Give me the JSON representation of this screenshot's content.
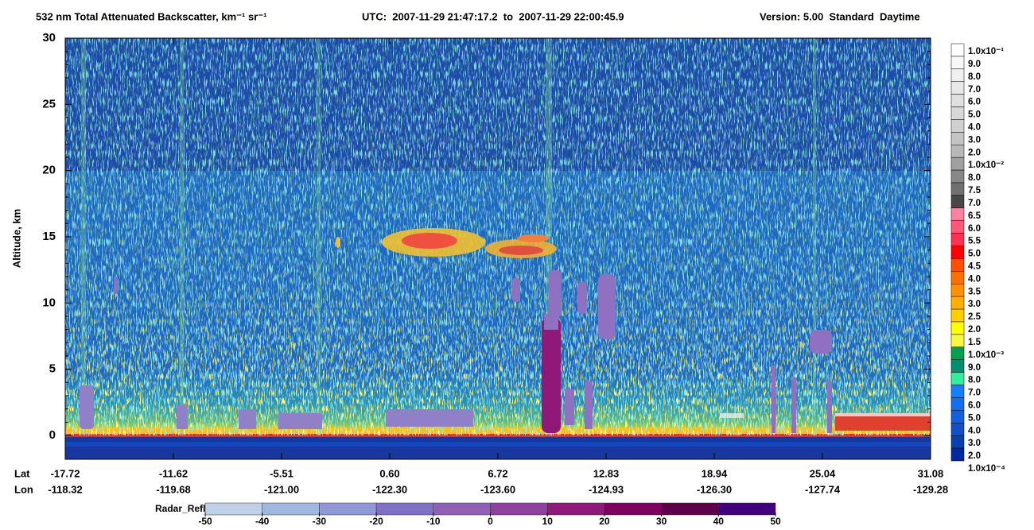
{
  "chart_data": {
    "type": "heatmap",
    "title": "532 nm Total Attenuated Backscatter, km⁻¹ sr⁻¹",
    "time_range": "UTC:  2007-11-29 21:47:17.2  to  2007-11-29 22:00:45.9",
    "version": "Version: 5.00  Standard  Daytime",
    "y_label": "Altitude, km",
    "ylim": [
      -1.8,
      30
    ],
    "yticks": [
      0,
      5,
      10,
      15,
      20,
      25,
      30
    ],
    "x_row_labels": [
      "Lat",
      "Lon"
    ],
    "lat_ticks": [
      "-17.72",
      "-11.62",
      "-5.51",
      "0.60",
      "6.72",
      "12.83",
      "18.94",
      "25.04",
      "31.08"
    ],
    "lon_ticks": [
      "-118.32",
      "-119.68",
      "-121.00",
      "-122.30",
      "-123.60",
      "-124.93",
      "-126.30",
      "-127.74",
      "-129.28"
    ],
    "colorbar": {
      "labels": [
        "1.0x10⁻¹",
        "9.0",
        "8.0",
        "7.0",
        "6.0",
        "5.0",
        "4.0",
        "3.0",
        "2.0",
        "1.0x10⁻²",
        "8.0",
        "7.5",
        "7.0",
        "6.5",
        "6.0",
        "5.5",
        "5.0",
        "4.5",
        "4.0",
        "3.5",
        "3.0",
        "2.5",
        "2.0",
        "1.5",
        "1.0x10⁻³",
        "9.0",
        "8.0",
        "7.0",
        "6.0",
        "5.0",
        "4.0",
        "3.0",
        "2.0",
        "1.0x10⁻⁴"
      ],
      "colors": [
        "#ffffff",
        "#f8f8f8",
        "#f0f0f0",
        "#e8e8e8",
        "#e0e0e0",
        "#d8d8d8",
        "#d0d0d0",
        "#c4c4c4",
        "#b8b8b8",
        "#a0a0a0",
        "#888888",
        "#707070",
        "#484848",
        "#ff80a0",
        "#ff5878",
        "#ff3050",
        "#ff0000",
        "#ff5000",
        "#ff7000",
        "#ff9000",
        "#ffb000",
        "#ffd000",
        "#ffff00",
        "#f8f840",
        "#00a050",
        "#009070",
        "#30f0a0",
        "#1480ff",
        "#1070f0",
        "#1060e0",
        "#1050c8",
        "#0840b0",
        "#0028a0"
      ]
    },
    "radar_colorbar": {
      "label": "Radar_Reflectivity",
      "ticks": [
        -50,
        -40,
        -30,
        -20,
        -10,
        0,
        10,
        20,
        30,
        40,
        50
      ],
      "colors": [
        "#c0d0e8",
        "#a0b8e0",
        "#9098d8",
        "#8070c8",
        "#9060b8",
        "#9040a0",
        "#901878",
        "#800060",
        "#60004a",
        "#400080"
      ]
    }
  }
}
